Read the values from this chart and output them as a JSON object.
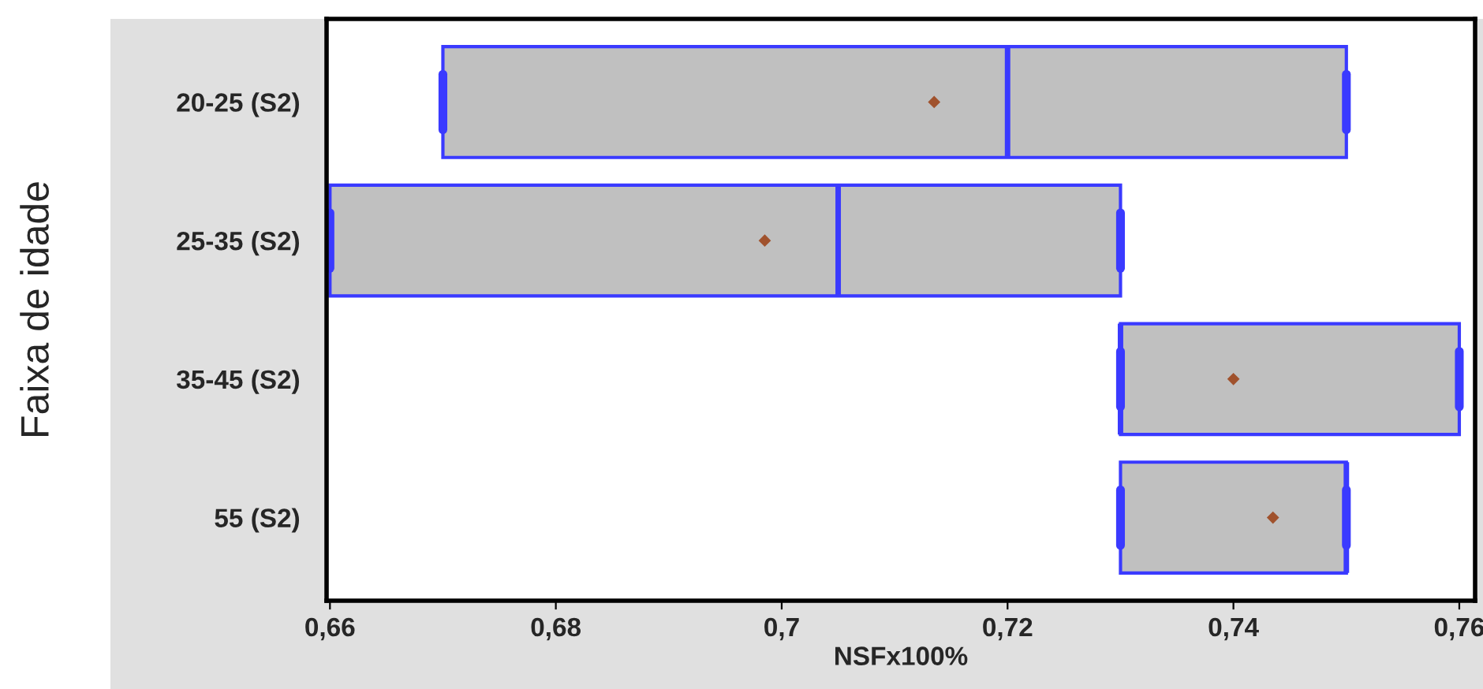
{
  "chart_data": {
    "type": "box",
    "orientation": "horizontal",
    "xlabel": "NSFx100%",
    "ylabel": "Faixa de idade",
    "categories": [
      "20-25 (S2)",
      "25-35 (S2)",
      "35-45 (S2)",
      "55 (S2)"
    ],
    "boxes": [
      {
        "low": 0.67,
        "q1": 0.67,
        "median": 0.72,
        "q3": 0.75,
        "high": 0.75,
        "mean": 0.7135
      },
      {
        "low": 0.66,
        "q1": 0.66,
        "median": 0.705,
        "q3": 0.73,
        "high": 0.73,
        "mean": 0.6985
      },
      {
        "low": 0.73,
        "q1": 0.73,
        "median": 0.73,
        "q3": 0.76,
        "high": 0.76,
        "mean": 0.74
      },
      {
        "low": 0.73,
        "q1": 0.73,
        "median": 0.75,
        "q3": 0.75,
        "high": 0.75,
        "mean": 0.7435
      }
    ],
    "color": "#c0c0c0",
    "xlim": [
      0.6597,
      0.7614
    ],
    "xticks": [
      {
        "value": 0.66,
        "label": "0,66"
      },
      {
        "value": 0.68,
        "label": "0,68"
      },
      {
        "value": 0.7,
        "label": "0,7"
      },
      {
        "value": 0.72,
        "label": "0,72"
      },
      {
        "value": 0.74,
        "label": "0,74"
      },
      {
        "value": 0.76,
        "label": "0,76"
      }
    ],
    "grid": false,
    "legend": false
  }
}
